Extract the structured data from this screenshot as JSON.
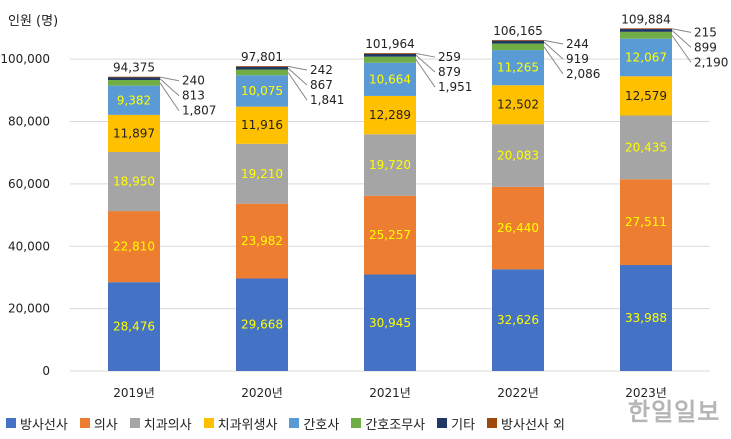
{
  "chart_data": {
    "type": "bar",
    "stacked": true,
    "ylabel": "인원 (명)",
    "ylim": [
      0,
      110000
    ],
    "yticks": [
      "0",
      "20,000",
      "40,000",
      "60,000",
      "80,000",
      "100,000"
    ],
    "ytick_values": [
      0,
      20000,
      40000,
      60000,
      80000,
      100000
    ],
    "categories": [
      "2019년",
      "2020년",
      "2021년",
      "2022년",
      "2023년"
    ],
    "totals": [
      94375,
      97801,
      101964,
      106165,
      109884
    ],
    "total_labels": [
      "94,375",
      "97,801",
      "101,964",
      "106,165",
      "109,884"
    ],
    "series": [
      {
        "name": "방사선사",
        "color": "#4472C4",
        "label_color": "#FFFF00",
        "values": [
          28476,
          29668,
          30945,
          32626,
          33988
        ],
        "labels": [
          "28,476",
          "29,668",
          "30,945",
          "32,626",
          "33,988"
        ]
      },
      {
        "name": "의사",
        "color": "#ED7D31",
        "label_color": "#FFFF00",
        "values": [
          22810,
          23982,
          25257,
          26440,
          27511
        ],
        "labels": [
          "22,810",
          "23,982",
          "25,257",
          "26,440",
          "27,511"
        ]
      },
      {
        "name": "치과의사",
        "color": "#A5A5A5",
        "label_color": "#FFFF00",
        "values": [
          18950,
          19210,
          19720,
          20083,
          20435
        ],
        "labels": [
          "18,950",
          "19,210",
          "19,720",
          "20,083",
          "20,435"
        ]
      },
      {
        "name": "치과위생사",
        "color": "#FFC000",
        "label_color": "#222222",
        "values": [
          11897,
          11916,
          12289,
          12502,
          12579
        ],
        "labels": [
          "11,897",
          "11,916",
          "12,289",
          "12,502",
          "12,579"
        ]
      },
      {
        "name": "간호사",
        "color": "#5B9BD5",
        "label_color": "#FFFF00",
        "values": [
          9382,
          10075,
          10664,
          11265,
          12067
        ],
        "labels": [
          "9,382",
          "10,075",
          "10,664",
          "11,265",
          "12,067"
        ]
      },
      {
        "name": "간호조무사",
        "color": "#70AD47",
        "label_color": "#222222",
        "values": [
          1807,
          1841,
          1951,
          2086,
          2190
        ],
        "labels": [
          "1,807",
          "1,841",
          "1,951",
          "2,086",
          "2,190"
        ]
      },
      {
        "name": "기타",
        "color": "#1F3864",
        "label_color": "#222222",
        "values": [
          813,
          867,
          879,
          919,
          899
        ],
        "labels": [
          "813",
          "867",
          "879",
          "919",
          "899"
        ]
      },
      {
        "name": "방사선사 외",
        "color": "#9E480E",
        "label_color": "#222222",
        "values": [
          240,
          242,
          259,
          244,
          215
        ],
        "labels": [
          "240",
          "242",
          "259",
          "244",
          "215"
        ]
      }
    ],
    "legend_position": "bottom",
    "grid": true
  },
  "watermark": "한일일보"
}
